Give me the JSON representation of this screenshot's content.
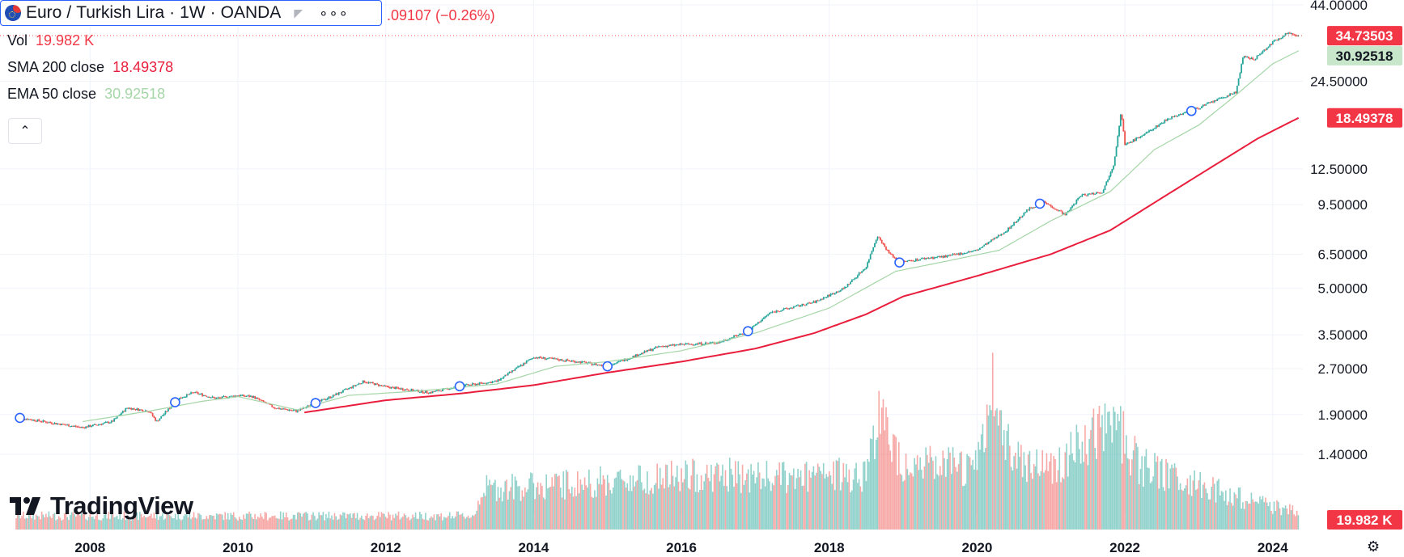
{
  "header": {
    "symbol_name": "Euro",
    "separator": "/",
    "quote_name": "Turkish Lira",
    "interval": "1W",
    "source": "OANDA",
    "more_label": "∘∘∘",
    "change_text": ".09107 (−0.26%)"
  },
  "indicators": {
    "vol": {
      "label": "Vol",
      "value": "19.982 K",
      "color": "#f23645"
    },
    "sma": {
      "label": "SMA 200 close",
      "value": "18.49378",
      "color": "#e91e3c"
    },
    "ema": {
      "label": "EMA 50 close",
      "value": "30.92518",
      "color": "#a5d6a7"
    }
  },
  "collapse_icon": "chevron-up-icon",
  "logo": {
    "text": "TradingView"
  },
  "settings_icon": "gear-icon",
  "colors": {
    "up": "#26a69a",
    "down": "#ef5350",
    "sma": "#e91e3c",
    "ema": "#a5d6a7",
    "accent": "#2962ff"
  },
  "chart_data": {
    "type": "candlestick",
    "scale": "log",
    "y_ticks": [
      "44.00000",
      "24.50000",
      "12.50000",
      "9.50000",
      "6.50000",
      "5.00000",
      "3.50000",
      "2.70000",
      "1.90000",
      "1.40000"
    ],
    "y_tick_values": [
      44,
      24.5,
      12.5,
      9.5,
      6.5,
      5,
      3.5,
      2.7,
      1.9,
      1.4
    ],
    "x_ticks": [
      "2008",
      "2010",
      "2012",
      "2014",
      "2016",
      "2018",
      "2020",
      "2022",
      "2024"
    ],
    "x_tick_values": [
      2008,
      2010,
      2012,
      2014,
      2016,
      2018,
      2020,
      2022,
      2024
    ],
    "price_path": [
      [
        2007.0,
        1.86
      ],
      [
        2007.5,
        1.78
      ],
      [
        2007.9,
        1.72
      ],
      [
        2008.3,
        1.8
      ],
      [
        2008.5,
        2.0
      ],
      [
        2008.8,
        1.95
      ],
      [
        2008.9,
        1.8
      ],
      [
        2009.2,
        2.15
      ],
      [
        2009.4,
        2.25
      ],
      [
        2009.7,
        2.15
      ],
      [
        2010.0,
        2.2
      ],
      [
        2010.2,
        2.18
      ],
      [
        2010.5,
        2.0
      ],
      [
        2010.8,
        1.95
      ],
      [
        2011.0,
        2.05
      ],
      [
        2011.3,
        2.2
      ],
      [
        2011.7,
        2.45
      ],
      [
        2012.0,
        2.35
      ],
      [
        2012.4,
        2.28
      ],
      [
        2012.6,
        2.25
      ],
      [
        2013.0,
        2.36
      ],
      [
        2013.5,
        2.45
      ],
      [
        2014.0,
        2.95
      ],
      [
        2014.3,
        2.9
      ],
      [
        2014.6,
        2.85
      ],
      [
        2015.0,
        2.75
      ],
      [
        2015.4,
        3.0
      ],
      [
        2015.7,
        3.2
      ],
      [
        2016.0,
        3.25
      ],
      [
        2016.5,
        3.3
      ],
      [
        2016.9,
        3.6
      ],
      [
        2017.2,
        4.15
      ],
      [
        2017.8,
        4.5
      ],
      [
        2018.2,
        5.0
      ],
      [
        2018.5,
        5.9
      ],
      [
        2018.65,
        7.5
      ],
      [
        2018.8,
        6.6
      ],
      [
        2018.95,
        6.1
      ],
      [
        2019.3,
        6.3
      ],
      [
        2019.6,
        6.4
      ],
      [
        2020.0,
        6.7
      ],
      [
        2020.4,
        7.8
      ],
      [
        2020.7,
        9.2
      ],
      [
        2020.9,
        9.7
      ],
      [
        2021.2,
        8.8
      ],
      [
        2021.4,
        10.2
      ],
      [
        2021.7,
        10.5
      ],
      [
        2021.85,
        13.0
      ],
      [
        2021.95,
        19.5
      ],
      [
        2022.0,
        15.0
      ],
      [
        2022.3,
        16.5
      ],
      [
        2022.6,
        18.5
      ],
      [
        2022.9,
        19.5
      ],
      [
        2023.2,
        21.0
      ],
      [
        2023.5,
        22.5
      ],
      [
        2023.6,
        29.5
      ],
      [
        2023.75,
        29.0
      ],
      [
        2024.0,
        33.0
      ],
      [
        2024.2,
        35.5
      ],
      [
        2024.35,
        34.74
      ]
    ],
    "sma200_path": [
      [
        2010.9,
        1.93
      ],
      [
        2012.0,
        2.12
      ],
      [
        2013.0,
        2.23
      ],
      [
        2014.0,
        2.38
      ],
      [
        2015.0,
        2.62
      ],
      [
        2016.0,
        2.85
      ],
      [
        2017.0,
        3.15
      ],
      [
        2017.8,
        3.55
      ],
      [
        2018.5,
        4.1
      ],
      [
        2019.0,
        4.7
      ],
      [
        2020.0,
        5.5
      ],
      [
        2021.0,
        6.5
      ],
      [
        2021.8,
        7.8
      ],
      [
        2022.5,
        10.0
      ],
      [
        2023.2,
        12.8
      ],
      [
        2023.8,
        15.8
      ],
      [
        2024.35,
        18.49
      ]
    ],
    "ema50_path": [
      [
        2007.9,
        1.8
      ],
      [
        2008.8,
        1.95
      ],
      [
        2009.5,
        2.1
      ],
      [
        2010.0,
        2.18
      ],
      [
        2010.8,
        1.97
      ],
      [
        2011.5,
        2.2
      ],
      [
        2012.5,
        2.28
      ],
      [
        2013.5,
        2.4
      ],
      [
        2014.3,
        2.75
      ],
      [
        2015.0,
        2.85
      ],
      [
        2016.0,
        3.1
      ],
      [
        2017.0,
        3.55
      ],
      [
        2018.0,
        4.3
      ],
      [
        2018.9,
        5.7
      ],
      [
        2019.5,
        6.1
      ],
      [
        2020.3,
        6.7
      ],
      [
        2021.0,
        8.4
      ],
      [
        2021.8,
        10.5
      ],
      [
        2022.4,
        14.5
      ],
      [
        2023.0,
        17.5
      ],
      [
        2023.5,
        22.0
      ],
      [
        2024.0,
        28.0
      ],
      [
        2024.35,
        30.93
      ]
    ],
    "volume_profile": [
      [
        2007.0,
        0.12
      ],
      [
        2013.2,
        0.12
      ],
      [
        2013.3,
        0.36
      ],
      [
        2014.5,
        0.4
      ],
      [
        2015.5,
        0.45
      ],
      [
        2016.5,
        0.48
      ],
      [
        2017.5,
        0.45
      ],
      [
        2018.5,
        0.5
      ],
      [
        2018.65,
        1.0
      ],
      [
        2019.0,
        0.6
      ],
      [
        2019.5,
        0.55
      ],
      [
        2020.0,
        0.55
      ],
      [
        2020.2,
        1.2
      ],
      [
        2020.5,
        0.65
      ],
      [
        2021.0,
        0.55
      ],
      [
        2021.9,
        0.95
      ],
      [
        2022.2,
        0.55
      ],
      [
        2023.0,
        0.4
      ],
      [
        2023.7,
        0.25
      ],
      [
        2024.35,
        0.15
      ]
    ],
    "markers": [
      2007.05,
      2009.15,
      2011.05,
      2013.0,
      2015.0,
      2016.9,
      2018.95,
      2020.85,
      2022.9
    ],
    "last_price_label": "34.73503",
    "ema_label": "30.92518",
    "sma_label": "18.49378",
    "volume_label": "19.982 K"
  }
}
